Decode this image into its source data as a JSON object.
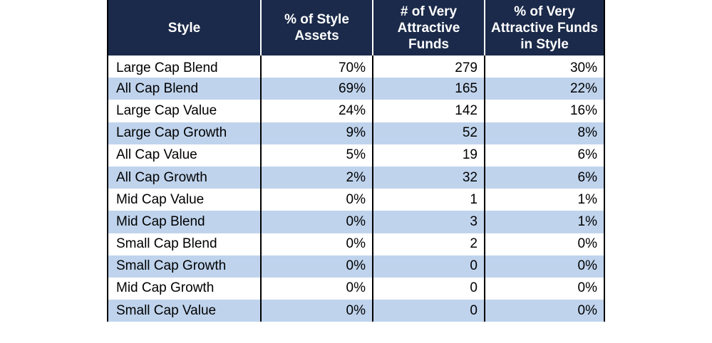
{
  "headers": [
    "Style",
    "% of Style Assets",
    "# of Very Attractive Funds",
    "% of Very Attractive Funds in Style"
  ],
  "rows": [
    {
      "style": "Large Cap Blend",
      "assets": "70%",
      "funds": "279",
      "pct": "30%"
    },
    {
      "style": "All Cap Blend",
      "assets": "69%",
      "funds": "165",
      "pct": "22%"
    },
    {
      "style": "Large Cap Value",
      "assets": "24%",
      "funds": "142",
      "pct": "16%"
    },
    {
      "style": "Large Cap Growth",
      "assets": "9%",
      "funds": "52",
      "pct": "8%"
    },
    {
      "style": "All Cap Value",
      "assets": "5%",
      "funds": "19",
      "pct": "6%"
    },
    {
      "style": "All Cap Growth",
      "assets": "2%",
      "funds": "32",
      "pct": "6%"
    },
    {
      "style": "Mid Cap Value",
      "assets": "0%",
      "funds": "1",
      "pct": "1%"
    },
    {
      "style": "Mid Cap Blend",
      "assets": "0%",
      "funds": "3",
      "pct": "1%"
    },
    {
      "style": "Small Cap Blend",
      "assets": "0%",
      "funds": "2",
      "pct": "0%"
    },
    {
      "style": "Small Cap Growth",
      "assets": "0%",
      "funds": "0",
      "pct": "0%"
    },
    {
      "style": "Mid Cap Growth",
      "assets": "0%",
      "funds": "0",
      "pct": "0%"
    },
    {
      "style": "Small Cap Value",
      "assets": "0%",
      "funds": "0",
      "pct": "0%"
    }
  ],
  "colors": {
    "header_bg": "#1b2a4a",
    "header_text": "#ffffff",
    "alt_row_bg": "#bfd3ec",
    "row_bg": "#ffffff",
    "border": "#000000"
  }
}
